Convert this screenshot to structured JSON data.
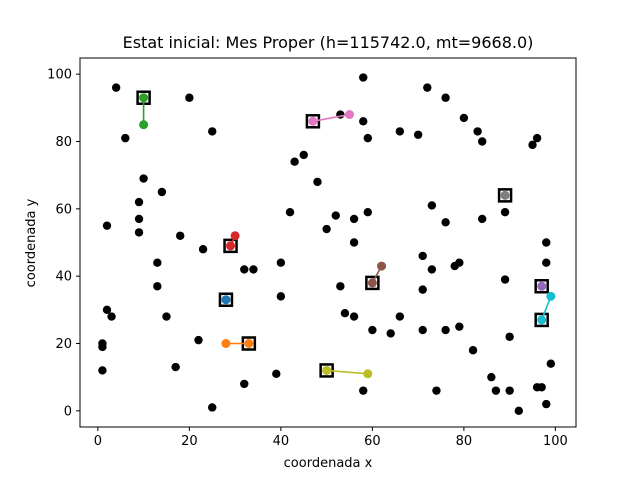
{
  "chart_data": {
    "type": "scatter",
    "title": "Estat inicial: Mes Proper (h=115742.0, mt=9668.0)",
    "xlabel": "coordenada x",
    "ylabel": "coordenada y",
    "xlim": [
      -3.9,
      104.5
    ],
    "ylim": [
      -4.8,
      104.8
    ],
    "xticks": [
      0,
      20,
      40,
      60,
      80,
      100
    ],
    "yticks": [
      0,
      20,
      40,
      60,
      80,
      100
    ],
    "grid": false,
    "points_color": "#000000",
    "points": [
      [
        4,
        96
      ],
      [
        10,
        93
      ],
      [
        20,
        93
      ],
      [
        6,
        81
      ],
      [
        25,
        83
      ],
      [
        10,
        85
      ],
      [
        58,
        99
      ],
      [
        72,
        96
      ],
      [
        76,
        93
      ],
      [
        80,
        87
      ],
      [
        83,
        83
      ],
      [
        84,
        80
      ],
      [
        95,
        79
      ],
      [
        96,
        81
      ],
      [
        59,
        81
      ],
      [
        66,
        83
      ],
      [
        70,
        82
      ],
      [
        55,
        88
      ],
      [
        47,
        86
      ],
      [
        53,
        88
      ],
      [
        58,
        86
      ],
      [
        43,
        74
      ],
      [
        45,
        76
      ],
      [
        48,
        68
      ],
      [
        10,
        69
      ],
      [
        14,
        65
      ],
      [
        9,
        62
      ],
      [
        9,
        57
      ],
      [
        9,
        53
      ],
      [
        2,
        55
      ],
      [
        18,
        52
      ],
      [
        23,
        48
      ],
      [
        30,
        52
      ],
      [
        29,
        49
      ],
      [
        42,
        59
      ],
      [
        50,
        54
      ],
      [
        52,
        58
      ],
      [
        56,
        57
      ],
      [
        59,
        59
      ],
      [
        56,
        50
      ],
      [
        73,
        61
      ],
      [
        76,
        56
      ],
      [
        84,
        57
      ],
      [
        89,
        64
      ],
      [
        89,
        59
      ],
      [
        98,
        50
      ],
      [
        13,
        44
      ],
      [
        13,
        37
      ],
      [
        15,
        28
      ],
      [
        2,
        30
      ],
      [
        3,
        28
      ],
      [
        1,
        20
      ],
      [
        1,
        19
      ],
      [
        1,
        12
      ],
      [
        17,
        13
      ],
      [
        22,
        21
      ],
      [
        25,
        1
      ],
      [
        32,
        8
      ],
      [
        39,
        11
      ],
      [
        28,
        33
      ],
      [
        32,
        42
      ],
      [
        34,
        42
      ],
      [
        40,
        44
      ],
      [
        40,
        34
      ],
      [
        28,
        20
      ],
      [
        33,
        20
      ],
      [
        53,
        37
      ],
      [
        54,
        29
      ],
      [
        56,
        28
      ],
      [
        60,
        24
      ],
      [
        64,
        23
      ],
      [
        66,
        28
      ],
      [
        60,
        38
      ],
      [
        62,
        43
      ],
      [
        71,
        46
      ],
      [
        73,
        42
      ],
      [
        71,
        36
      ],
      [
        71,
        24
      ],
      [
        76,
        24
      ],
      [
        79,
        25
      ],
      [
        78,
        43
      ],
      [
        79,
        44
      ],
      [
        89,
        39
      ],
      [
        98,
        44
      ],
      [
        97,
        37
      ],
      [
        99,
        34
      ],
      [
        97,
        27
      ],
      [
        90,
        22
      ],
      [
        82,
        18
      ],
      [
        86,
        10
      ],
      [
        87,
        6
      ],
      [
        90,
        6
      ],
      [
        96,
        7
      ],
      [
        97,
        7
      ],
      [
        98,
        2
      ],
      [
        99,
        14
      ],
      [
        92,
        0
      ],
      [
        50,
        12
      ],
      [
        59,
        11
      ],
      [
        74,
        6
      ],
      [
        58,
        6
      ]
    ],
    "depots": [
      [
        10,
        93
      ],
      [
        47,
        86
      ],
      [
        89,
        64
      ],
      [
        29,
        49
      ],
      [
        60,
        38
      ],
      [
        97,
        37
      ],
      [
        28,
        33
      ],
      [
        33,
        20
      ],
      [
        97,
        27
      ],
      [
        50,
        12
      ]
    ],
    "series": [
      {
        "color": "#2ca02c",
        "points": [
          [
            10,
            93
          ],
          [
            10,
            85
          ]
        ]
      },
      {
        "color": "#e377c2",
        "points": [
          [
            47,
            86
          ],
          [
            55,
            88
          ]
        ]
      },
      {
        "color": "#7f7f7f",
        "points": [
          [
            89,
            64
          ]
        ]
      },
      {
        "color": "#d62728",
        "points": [
          [
            29,
            49
          ],
          [
            30,
            52
          ]
        ]
      },
      {
        "color": "#8c564b",
        "points": [
          [
            60,
            38
          ],
          [
            62,
            43
          ]
        ]
      },
      {
        "color": "#9467bd",
        "points": [
          [
            97,
            37
          ]
        ]
      },
      {
        "color": "#17becf",
        "points": [
          [
            97,
            27
          ],
          [
            99,
            34
          ]
        ]
      },
      {
        "color": "#1f77b4",
        "points": [
          [
            28,
            33
          ]
        ]
      },
      {
        "color": "#ff7f0e",
        "points": [
          [
            33,
            20
          ],
          [
            28,
            20
          ]
        ]
      },
      {
        "color": "#bcbd22",
        "points": [
          [
            50,
            12
          ],
          [
            59,
            11
          ]
        ]
      }
    ]
  }
}
